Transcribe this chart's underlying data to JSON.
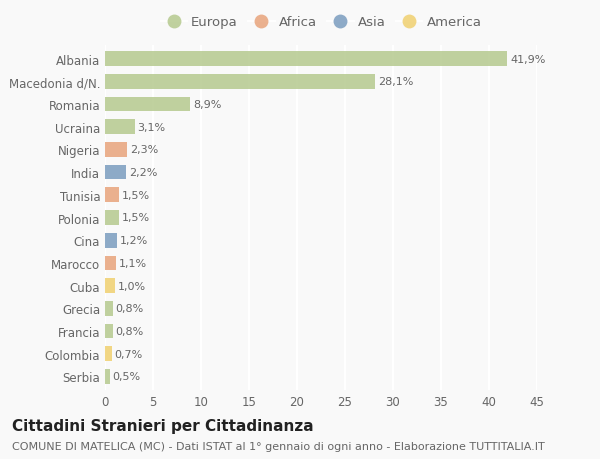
{
  "countries": [
    "Albania",
    "Macedonia d/N.",
    "Romania",
    "Ucraina",
    "Nigeria",
    "India",
    "Tunisia",
    "Polonia",
    "Cina",
    "Marocco",
    "Cuba",
    "Grecia",
    "Francia",
    "Colombia",
    "Serbia"
  ],
  "values": [
    41.9,
    28.1,
    8.9,
    3.1,
    2.3,
    2.2,
    1.5,
    1.5,
    1.2,
    1.1,
    1.0,
    0.8,
    0.8,
    0.7,
    0.5
  ],
  "labels": [
    "41,9%",
    "28,1%",
    "8,9%",
    "3,1%",
    "2,3%",
    "2,2%",
    "1,5%",
    "1,5%",
    "1,2%",
    "1,1%",
    "1,0%",
    "0,8%",
    "0,8%",
    "0,7%",
    "0,5%"
  ],
  "continents": [
    "Europa",
    "Europa",
    "Europa",
    "Europa",
    "Africa",
    "Asia",
    "Africa",
    "Europa",
    "Asia",
    "Africa",
    "America",
    "Europa",
    "Europa",
    "America",
    "Europa"
  ],
  "colors": {
    "Europa": "#b5c98e",
    "Africa": "#e8a47c",
    "Asia": "#7a9cbf",
    "America": "#f0d070"
  },
  "legend_order": [
    "Europa",
    "Africa",
    "Asia",
    "America"
  ],
  "title": "Cittadini Stranieri per Cittadinanza",
  "subtitle": "COMUNE DI MATELICA (MC) - Dati ISTAT al 1° gennaio di ogni anno - Elaborazione TUTTITALIA.IT",
  "xlim": [
    0,
    45
  ],
  "xticks": [
    0,
    5,
    10,
    15,
    20,
    25,
    30,
    35,
    40,
    45
  ],
  "background_color": "#f9f9f9",
  "grid_color": "#ffffff",
  "bar_height": 0.65,
  "title_fontsize": 11,
  "subtitle_fontsize": 8,
  "tick_fontsize": 8.5,
  "label_fontsize": 8,
  "legend_fontsize": 9.5
}
